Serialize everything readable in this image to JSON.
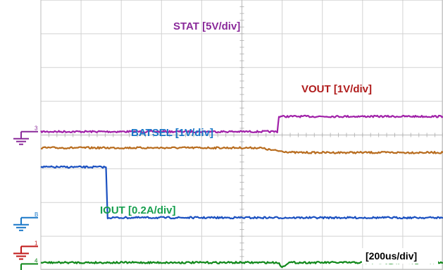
{
  "chart_data": {
    "type": "line",
    "title": "",
    "timebase": "[200us/div]",
    "grid": true,
    "x_divisions": 10,
    "y_divisions": 8,
    "series": [
      {
        "name": "STAT [5V/div]",
        "color": "#a020a8",
        "ground_marker": "3",
        "ground_color": "#8a2a9a",
        "ground_div": 0.1,
        "points_div": [
          [
            0,
            0.1
          ],
          [
            5.88,
            0.1
          ],
          [
            5.92,
            0.55
          ],
          [
            10,
            0.55
          ]
        ]
      },
      {
        "name": "VOUT [1V/div]",
        "color": "#b86c1e",
        "ground_marker": "",
        "ground_color": "#b86c1e",
        "ground_div": null,
        "points_div": [
          [
            0,
            -0.38
          ],
          [
            5.45,
            -0.38
          ],
          [
            5.75,
            -0.45
          ],
          [
            6.3,
            -0.52
          ],
          [
            10,
            -0.52
          ]
        ]
      },
      {
        "name": "BATSEL [1V/div]",
        "color": "#1a50c0",
        "ground_marker": "B",
        "ground_color": "#1a78c8",
        "ground_div": -2.45,
        "points_div": [
          [
            0,
            -0.95
          ],
          [
            1.62,
            -0.95
          ],
          [
            1.66,
            -2.45
          ],
          [
            10,
            -2.45
          ]
        ]
      },
      {
        "name": "",
        "color": "#c01818",
        "ground_marker": "1",
        "ground_color": "#c01818",
        "ground_div": -3.3,
        "points_div": []
      },
      {
        "name": "IOUT [0.2A/div]",
        "color": "#10881a",
        "ground_marker": "4",
        "ground_color": "#10881a",
        "ground_div": -3.82,
        "points_div": [
          [
            0,
            -3.78
          ],
          [
            5.9,
            -3.78
          ],
          [
            6.0,
            -3.92
          ],
          [
            6.15,
            -3.78
          ],
          [
            10,
            -3.78
          ]
        ]
      }
    ]
  }
}
